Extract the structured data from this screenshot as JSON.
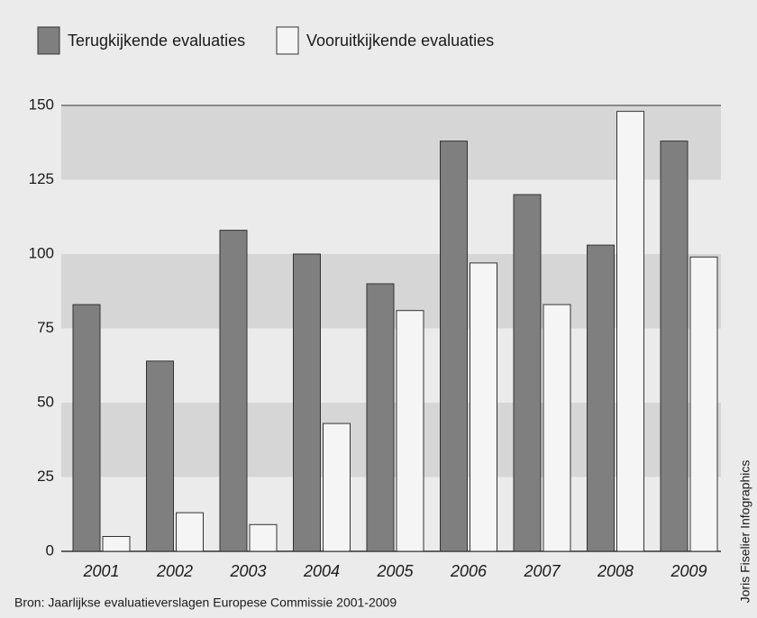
{
  "chart_data": {
    "type": "bar",
    "categories": [
      "2001",
      "2002",
      "2003",
      "2004",
      "2005",
      "2006",
      "2007",
      "2008",
      "2009"
    ],
    "series": [
      {
        "name": "Terugkijkende evaluaties",
        "color": "#7f7f7f",
        "values": [
          83,
          64,
          108,
          100,
          90,
          138,
          120,
          103,
          138
        ]
      },
      {
        "name": "Vooruitkijkende evaluaties",
        "color": "#f5f5f5",
        "values": [
          5,
          13,
          9,
          43,
          81,
          97,
          83,
          148,
          99
        ]
      }
    ],
    "ylim": [
      0,
      150
    ],
    "yticks": [
      0,
      25,
      50,
      75,
      100,
      125,
      150
    ],
    "grid": true,
    "source": "Bron: Jaarlijkse evaluatieverslagen Europese Commissie 2001-2009",
    "credit": "Joris Fiselier Infographics"
  }
}
